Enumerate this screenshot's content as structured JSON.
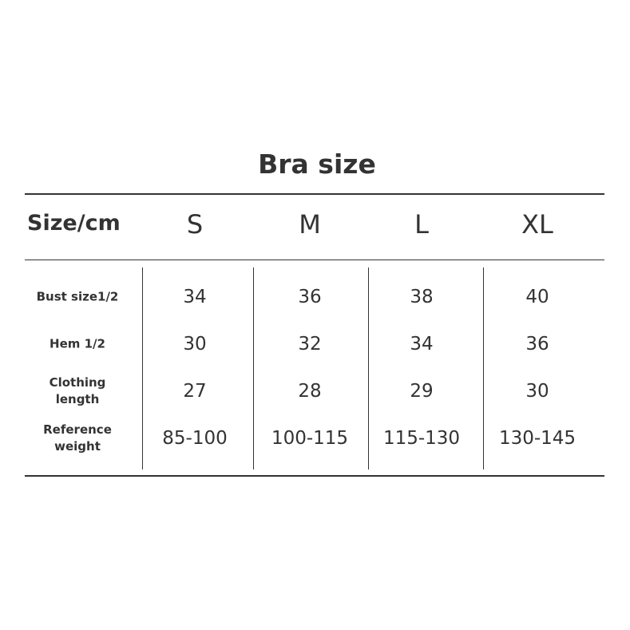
{
  "title": "Bra size",
  "table": {
    "corner_label": "Size/cm",
    "columns": [
      "S",
      "M",
      "L",
      "XL"
    ],
    "rows": [
      {
        "label": "Bust size1/2",
        "values": [
          "34",
          "36",
          "38",
          "40"
        ]
      },
      {
        "label": "Hem 1/2",
        "values": [
          "30",
          "32",
          "34",
          "36"
        ]
      },
      {
        "label": "Clothing length",
        "values": [
          "27",
          "28",
          "29",
          "30"
        ]
      },
      {
        "label": "Reference weight",
        "values": [
          "85-100",
          "100-115",
          "115-130",
          "130-145"
        ]
      }
    ]
  }
}
